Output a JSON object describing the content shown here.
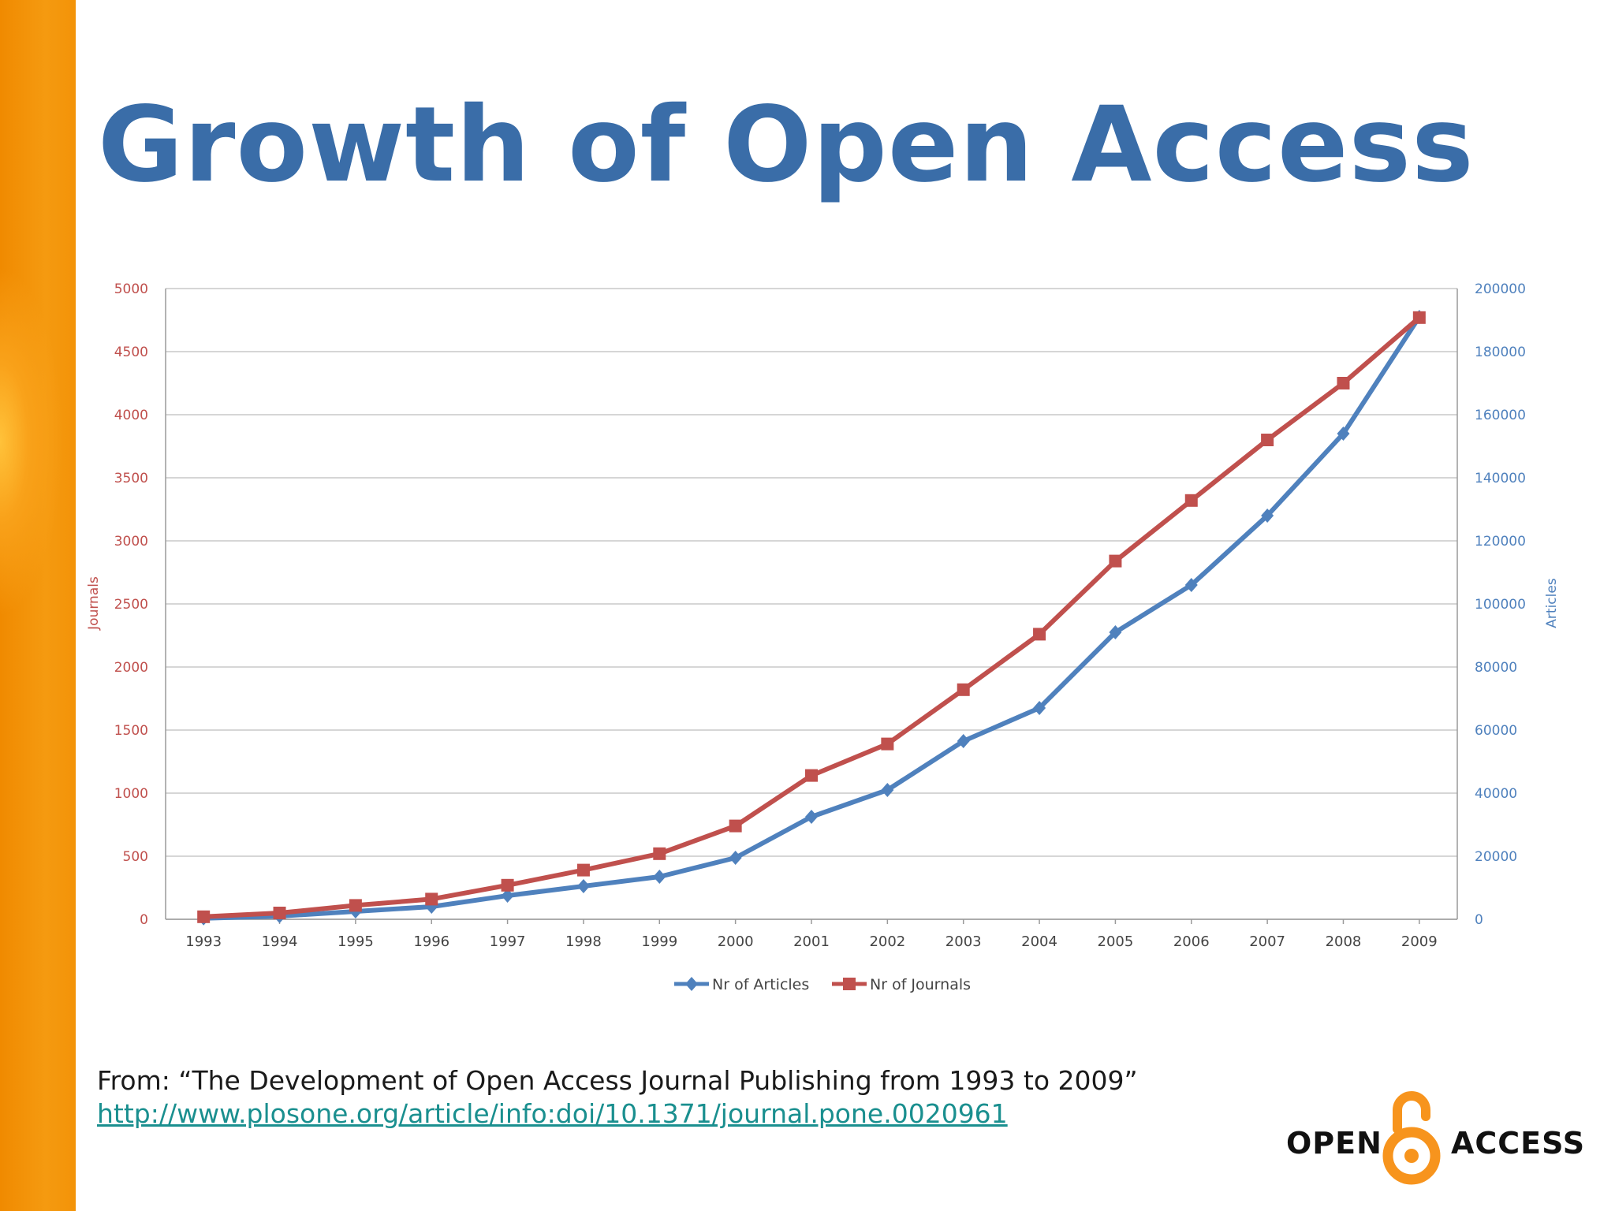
{
  "slide": {
    "title": "Growth of Open Access",
    "citation": "From: “The Development of Open Access Journal Publishing from 1993 to 2009”",
    "link": "http://www.plosone.org/article/info:doi/10.1371/journal.pone.0020961",
    "logo": {
      "left_word": "OPEN",
      "right_word": "ACCESS",
      "color": "#f7941d"
    },
    "accent_bar_color": "#f39308",
    "title_color": "#3a6da8"
  },
  "chart_data": {
    "type": "line",
    "title": "",
    "x": [
      "1993",
      "1994",
      "1995",
      "1996",
      "1997",
      "1998",
      "1999",
      "2000",
      "2001",
      "2002",
      "2003",
      "2004",
      "2005",
      "2006",
      "2007",
      "2008",
      "2009"
    ],
    "ylabel_left": "Journals",
    "ylabel_right": "Articles",
    "ylim_left": [
      0,
      5000
    ],
    "ylim_right": [
      0,
      200000
    ],
    "yticks_left": [
      "0",
      "500",
      "1000",
      "1500",
      "2000",
      "2500",
      "3000",
      "3500",
      "4000",
      "4500",
      "5000"
    ],
    "yticks_right": [
      "0",
      "20000",
      "40000",
      "60000",
      "80000",
      "100000",
      "120000",
      "140000",
      "160000",
      "180000",
      "200000"
    ],
    "legend_position": "bottom",
    "grid": true,
    "series": [
      {
        "name": "Nr of Articles",
        "axis": "right",
        "color": "#4f81bd",
        "marker": "diamond",
        "values": [
          300,
          1000,
          2500,
          4000,
          7500,
          10500,
          13500,
          19500,
          32500,
          41000,
          56500,
          67000,
          91000,
          106000,
          128000,
          154000,
          191000
        ]
      },
      {
        "name": "Nr of Journals",
        "axis": "left",
        "color": "#c0504d",
        "marker": "square",
        "values": [
          20,
          50,
          110,
          160,
          270,
          390,
          520,
          740,
          1140,
          1390,
          1820,
          2260,
          2840,
          3320,
          3800,
          4250,
          4770
        ]
      }
    ]
  }
}
